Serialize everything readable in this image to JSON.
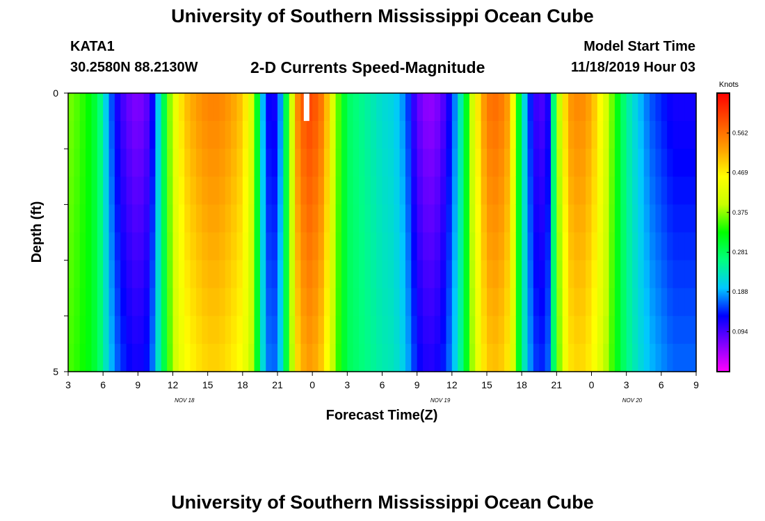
{
  "header": {
    "title": "University of Southern Mississippi Ocean Cube",
    "station_id": "KATA1",
    "coords": "30.2580N 88.2130W",
    "subtitle": "2-D Currents Speed-Magnitude",
    "model_start_label": "Model Start Time",
    "model_start_value": "11/18/2019 Hour 03"
  },
  "footer": {
    "title": "University of Southern Mississippi Ocean Cube"
  },
  "chart_data": {
    "type": "heatmap",
    "title": "2-D Currents Speed-Magnitude",
    "xlabel": "Forecast Time(Z)",
    "ylabel": "Depth (ft)",
    "x_tick_labels": [
      "3",
      "6",
      "9",
      "12",
      "15",
      "18",
      "21",
      "0",
      "3",
      "6",
      "9",
      "12",
      "15",
      "18",
      "21",
      "0",
      "3",
      "6",
      "9"
    ],
    "x_tick_hours": [
      3,
      6,
      9,
      12,
      15,
      18,
      21,
      24,
      27,
      30,
      33,
      36,
      39,
      42,
      45,
      48,
      51,
      54,
      57
    ],
    "date_labels": [
      {
        "label": "NOV 18",
        "hour": 13
      },
      {
        "label": "NOV 19",
        "hour": 35
      },
      {
        "label": "NOV 20",
        "hour": 51.5
      }
    ],
    "x_range_hours": [
      3,
      57
    ],
    "y_tick_labels": [
      "0",
      "5"
    ],
    "y_range_ft": [
      0,
      5
    ],
    "depth_levels_ft": [
      0.25,
      0.75,
      1.25,
      1.75,
      2.25,
      2.75,
      3.25,
      3.75,
      4.25,
      4.75
    ],
    "colorbar": {
      "label": "Knots",
      "ticks": [
        "0.094",
        "0.188",
        "0.281",
        "0.375",
        "0.469",
        "0.562"
      ],
      "tick_values": [
        0.094,
        0.188,
        0.281,
        0.375,
        0.469,
        0.562
      ],
      "range": [
        0,
        0.656
      ],
      "colors": [
        "#ff00ff",
        "#8000ff",
        "#0000ff",
        "#00c8ff",
        "#00ff80",
        "#00ff00",
        "#c8ff00",
        "#ffff00",
        "#ffa000",
        "#ff5000",
        "#ff0000"
      ]
    },
    "missing": [
      {
        "hour": 23.5,
        "depth_range_ft": [
          0,
          0.5
        ]
      }
    ],
    "surface_speed_profile": [
      {
        "hour": 3,
        "speed": 0.37
      },
      {
        "hour": 4,
        "speed": 0.35
      },
      {
        "hour": 5,
        "speed": 0.32
      },
      {
        "hour": 5.7,
        "speed": 0.27
      },
      {
        "hour": 6.3,
        "speed": 0.2
      },
      {
        "hour": 7,
        "speed": 0.13
      },
      {
        "hour": 8,
        "speed": 0.08
      },
      {
        "hour": 9,
        "speed": 0.06
      },
      {
        "hour": 10,
        "speed": 0.09
      },
      {
        "hour": 10.5,
        "speed": 0.16
      },
      {
        "hour": 11,
        "speed": 0.25
      },
      {
        "hour": 11.5,
        "speed": 0.33
      },
      {
        "hour": 12,
        "speed": 0.42
      },
      {
        "hour": 13,
        "speed": 0.5
      },
      {
        "hour": 14,
        "speed": 0.53
      },
      {
        "hour": 15,
        "speed": 0.55
      },
      {
        "hour": 16,
        "speed": 0.55
      },
      {
        "hour": 17,
        "speed": 0.53
      },
      {
        "hour": 18,
        "speed": 0.5
      },
      {
        "hour": 18.7,
        "speed": 0.43
      },
      {
        "hour": 19.3,
        "speed": 0.3
      },
      {
        "hour": 20,
        "speed": 0.13
      },
      {
        "hour": 21,
        "speed": 0.12
      },
      {
        "hour": 22,
        "speed": 0.35
      },
      {
        "hour": 22.8,
        "speed": 0.56
      },
      {
        "hour": 23.5,
        "speed": 0.6
      },
      {
        "hour": 24,
        "speed": 0.6
      },
      {
        "hour": 25,
        "speed": 0.55
      },
      {
        "hour": 26,
        "speed": 0.38
      },
      {
        "hour": 27,
        "speed": 0.28
      },
      {
        "hour": 28,
        "speed": 0.26
      },
      {
        "hour": 30,
        "speed": 0.22
      },
      {
        "hour": 31,
        "speed": 0.21
      },
      {
        "hour": 32,
        "speed": 0.17
      },
      {
        "hour": 33,
        "speed": 0.08
      },
      {
        "hour": 34,
        "speed": 0.05
      },
      {
        "hour": 35,
        "speed": 0.07
      },
      {
        "hour": 36,
        "speed": 0.14
      },
      {
        "hour": 37,
        "speed": 0.27
      },
      {
        "hour": 38,
        "speed": 0.45
      },
      {
        "hour": 39,
        "speed": 0.56
      },
      {
        "hour": 40,
        "speed": 0.57
      },
      {
        "hour": 41,
        "speed": 0.52
      },
      {
        "hour": 41.8,
        "speed": 0.3
      },
      {
        "hour": 42.5,
        "speed": 0.16
      },
      {
        "hour": 43.5,
        "speed": 0.08
      },
      {
        "hour": 44.3,
        "speed": 0.12
      },
      {
        "hour": 45,
        "speed": 0.35
      },
      {
        "hour": 46,
        "speed": 0.53
      },
      {
        "hour": 47,
        "speed": 0.55
      },
      {
        "hour": 48,
        "speed": 0.52
      },
      {
        "hour": 49,
        "speed": 0.44
      },
      {
        "hour": 50,
        "speed": 0.34
      },
      {
        "hour": 51,
        "speed": 0.25
      },
      {
        "hour": 52,
        "speed": 0.2
      },
      {
        "hour": 53,
        "speed": 0.16
      },
      {
        "hour": 55,
        "speed": 0.12
      },
      {
        "hour": 57,
        "speed": 0.12
      }
    ]
  }
}
